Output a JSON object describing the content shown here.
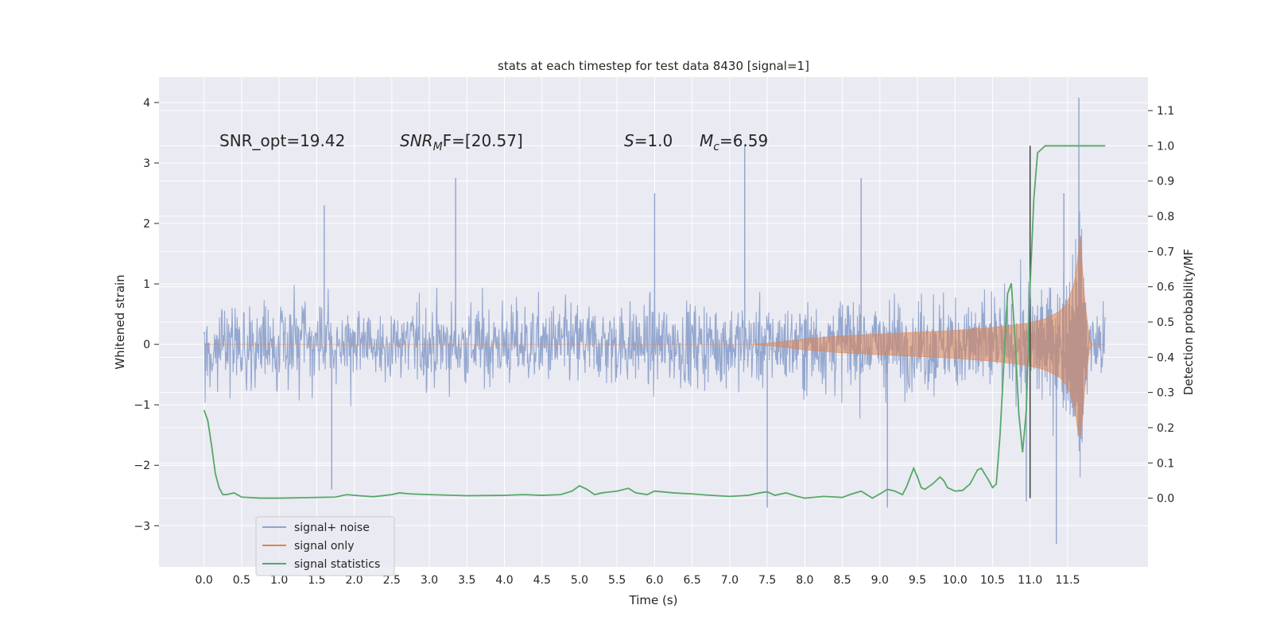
{
  "chart_data": {
    "type": "line",
    "title": "stats at each timestep for test data 8430 [signal=1]",
    "xlabel": "Time (s)",
    "ylabel": "Whitened strain",
    "ylabel_right": "Detection probability/MF",
    "xlim": [
      -0.6,
      12.57
    ],
    "ylim": [
      -3.68,
      4.42
    ],
    "ylim_right": [
      -0.195,
      1.195
    ],
    "xticks": [
      "0.0",
      "0.5",
      "1.0",
      "1.5",
      "2.0",
      "2.5",
      "3.0",
      "3.5",
      "4.0",
      "4.5",
      "5.0",
      "5.5",
      "6.0",
      "6.5",
      "7.0",
      "7.5",
      "8.0",
      "8.5",
      "9.0",
      "9.5",
      "10.0",
      "10.5",
      "11.0",
      "11.5"
    ],
    "yticks_left": [
      "−3",
      "−2",
      "−1",
      "0",
      "1",
      "2",
      "3",
      "4"
    ],
    "yticks_right": [
      "0.0",
      "0.1",
      "0.2",
      "0.3",
      "0.4",
      "0.5",
      "0.6",
      "0.7",
      "0.8",
      "0.9",
      "1.0",
      "1.1"
    ],
    "grid": true,
    "legend_position": "lower-left",
    "colors": {
      "background": "#eaeaf2",
      "grid": "#ffffff",
      "signal_noise": "#8fa3cc",
      "signal_only": "#dd8452",
      "signal_stats": "#55a868",
      "marker": "#404040"
    },
    "annotations": {
      "snr_opt": "SNR_opt=19.42",
      "snr_mf_main": "SNR",
      "snr_mf_sub": "M",
      "snr_mf_rest": "F=[20.57]",
      "s_sym": "S",
      "s_val": "=1.0",
      "mc_sym": "M",
      "mc_sub": "c",
      "mc_val": "=6.59"
    },
    "series": [
      {
        "name": "signal+ noise",
        "style": "dense noise trace",
        "x_range": [
          0.0,
          12.0
        ],
        "envelope": {
          "typical_abs": 1.6,
          "max": 4.08,
          "min": -3.3
        },
        "peaks": [
          {
            "x": 1.6,
            "y": 2.3
          },
          {
            "x": 3.35,
            "y": 2.75
          },
          {
            "x": 6.0,
            "y": 2.5
          },
          {
            "x": 7.2,
            "y": 3.3
          },
          {
            "x": 8.75,
            "y": 2.75
          },
          {
            "x": 11.45,
            "y": 2.5
          },
          {
            "x": 11.65,
            "y": 4.08
          },
          {
            "x": 1.7,
            "y": -2.4
          },
          {
            "x": 7.5,
            "y": -2.7
          },
          {
            "x": 9.1,
            "y": -2.7
          },
          {
            "x": 10.95,
            "y": -2.6
          },
          {
            "x": 11.35,
            "y": -3.3
          }
        ]
      },
      {
        "name": "signal only",
        "style": "chirp envelope",
        "envelope_points": [
          {
            "t": 0.0,
            "amp": 0.0
          },
          {
            "t": 7.3,
            "amp": 0.0
          },
          {
            "t": 7.6,
            "amp": 0.03
          },
          {
            "t": 8.0,
            "amp": 0.09
          },
          {
            "t": 8.5,
            "amp": 0.14
          },
          {
            "t": 9.0,
            "amp": 0.17
          },
          {
            "t": 9.5,
            "amp": 0.2
          },
          {
            "t": 10.0,
            "amp": 0.23
          },
          {
            "t": 10.5,
            "amp": 0.28
          },
          {
            "t": 10.8,
            "amp": 0.32
          },
          {
            "t": 11.0,
            "amp": 0.36
          },
          {
            "t": 11.2,
            "amp": 0.42
          },
          {
            "t": 11.4,
            "amp": 0.55
          },
          {
            "t": 11.5,
            "amp": 0.7
          },
          {
            "t": 11.6,
            "amp": 1.05
          },
          {
            "t": 11.67,
            "amp": 1.8
          },
          {
            "t": 11.72,
            "amp": 0.8
          },
          {
            "t": 11.8,
            "amp": 0.0
          },
          {
            "t": 12.0,
            "amp": 0.0
          }
        ],
        "lower_min": -1.5
      },
      {
        "name": "signal statistics",
        "axis": "right",
        "x": [
          0.0,
          0.05,
          0.1,
          0.15,
          0.2,
          0.25,
          0.3,
          0.4,
          0.5,
          0.75,
          1.0,
          1.5,
          1.75,
          1.9,
          2.0,
          2.25,
          2.5,
          2.6,
          2.75,
          3.0,
          3.5,
          4.0,
          4.25,
          4.5,
          4.75,
          4.9,
          5.0,
          5.1,
          5.2,
          5.3,
          5.5,
          5.65,
          5.75,
          5.9,
          6.0,
          6.25,
          6.5,
          6.75,
          7.0,
          7.25,
          7.4,
          7.5,
          7.6,
          7.75,
          7.9,
          8.0,
          8.25,
          8.5,
          8.6,
          8.75,
          8.9,
          9.0,
          9.1,
          9.2,
          9.3,
          9.35,
          9.45,
          9.5,
          9.55,
          9.6,
          9.7,
          9.8,
          9.85,
          9.9,
          10.0,
          10.1,
          10.2,
          10.3,
          10.35,
          10.45,
          10.5,
          10.55,
          10.6,
          10.65,
          10.7,
          10.75,
          10.8,
          10.85,
          10.9,
          10.95,
          11.0,
          11.05,
          11.1,
          11.15,
          11.2,
          11.3,
          11.5,
          11.7,
          11.9,
          12.0
        ],
        "y": [
          0.25,
          0.22,
          0.15,
          0.07,
          0.03,
          0.01,
          0.01,
          0.015,
          0.003,
          0.0,
          0.0,
          0.002,
          0.003,
          0.01,
          0.008,
          0.004,
          0.01,
          0.015,
          0.012,
          0.01,
          0.007,
          0.008,
          0.01,
          0.008,
          0.01,
          0.02,
          0.035,
          0.025,
          0.01,
          0.015,
          0.02,
          0.028,
          0.015,
          0.01,
          0.02,
          0.015,
          0.012,
          0.008,
          0.005,
          0.008,
          0.015,
          0.018,
          0.008,
          0.015,
          0.005,
          0.0,
          0.005,
          0.002,
          0.01,
          0.02,
          0.0,
          0.012,
          0.025,
          0.02,
          0.01,
          0.03,
          0.085,
          0.06,
          0.03,
          0.025,
          0.04,
          0.06,
          0.05,
          0.03,
          0.02,
          0.022,
          0.04,
          0.08,
          0.085,
          0.05,
          0.03,
          0.04,
          0.18,
          0.38,
          0.58,
          0.61,
          0.45,
          0.24,
          0.13,
          0.25,
          0.6,
          0.85,
          0.98,
          0.99,
          1.0,
          1.0,
          1.0,
          1.0,
          1.0,
          1.0
        ]
      },
      {
        "name": "",
        "style": "vertical marker",
        "x": 11.0,
        "y_range_right": [
          0.0,
          1.0
        ]
      }
    ]
  }
}
